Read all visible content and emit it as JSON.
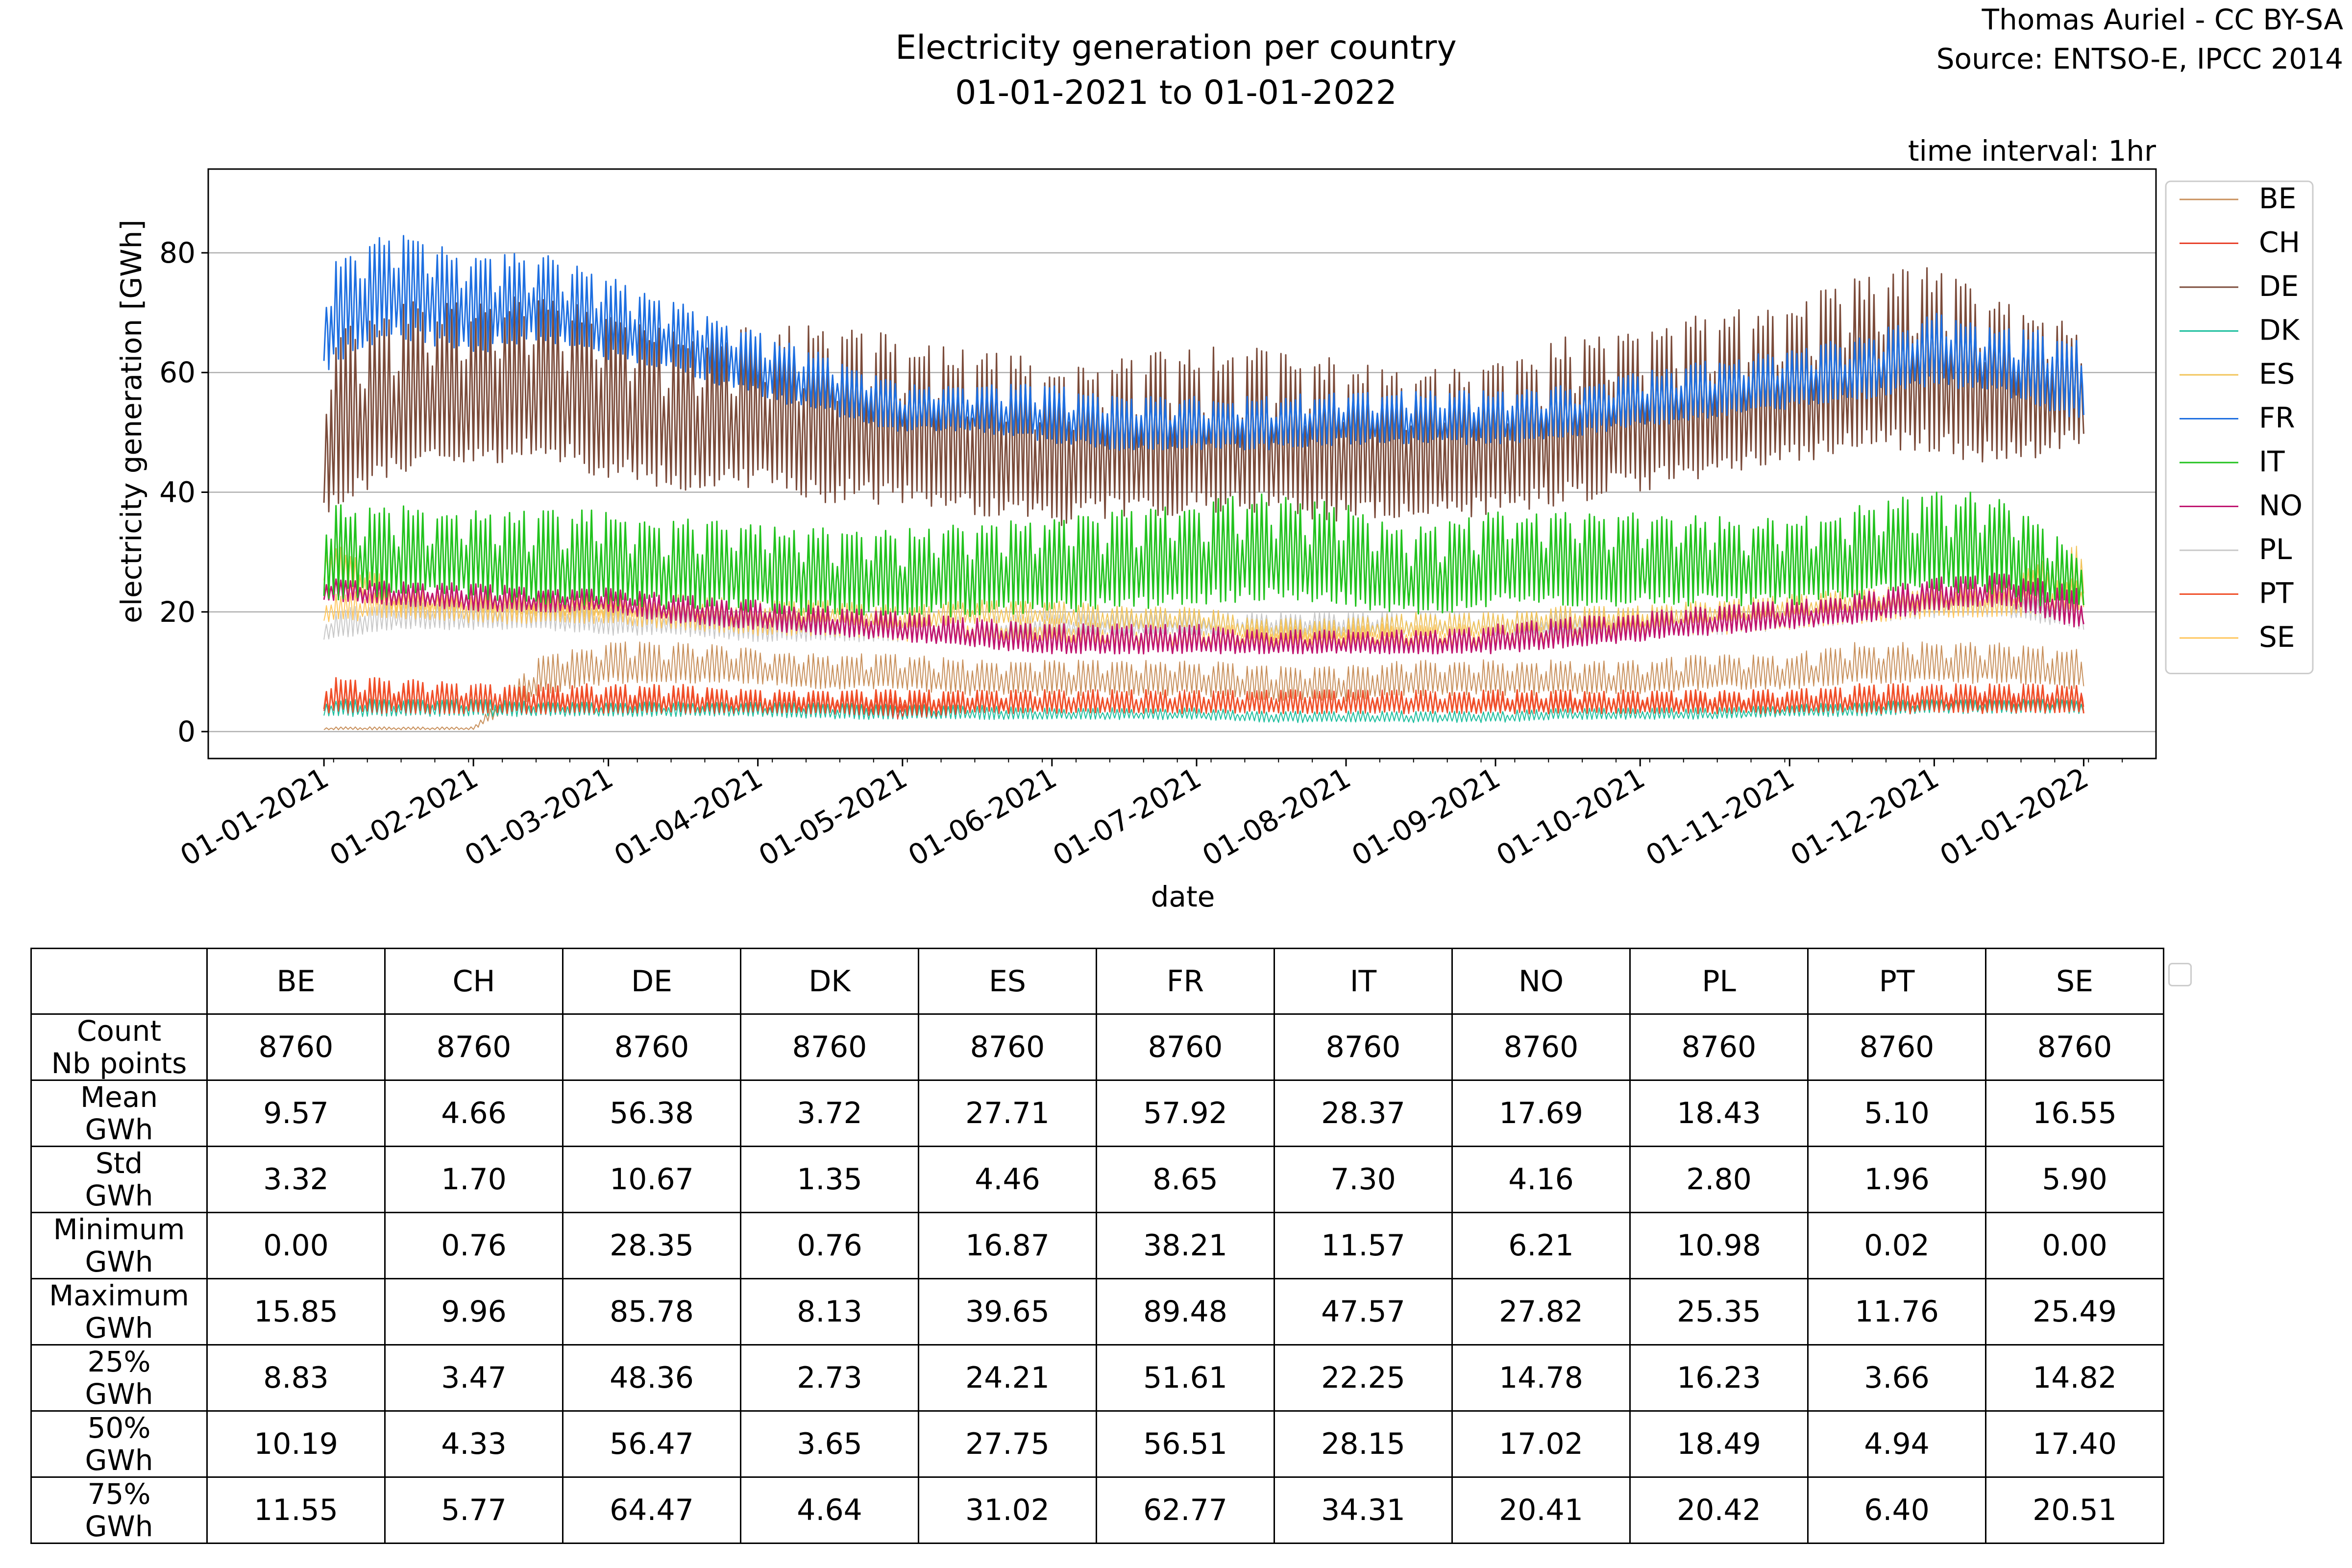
{
  "header": {
    "title_line1": "Electricity generation per country",
    "title_line2": "01-01-2021 to 01-01-2022",
    "credit_line1": "Thomas Auriel - CC BY-SA",
    "credit_line2": "Source: ENTSO-E, IPCC 2014",
    "interval": "time interval: 1hr"
  },
  "chart_data": {
    "type": "line",
    "title": "Electricity generation per country\n01-01-2021 to 01-01-2022",
    "xlabel": "date",
    "ylabel": "electricity generation [GWh]",
    "ylim": [
      -4.5,
      94
    ],
    "xlim": [
      "2020-12-08",
      "2022-01-16"
    ],
    "grid": "horizontal",
    "legend_position": "right",
    "yticks": [
      0,
      20,
      40,
      60,
      80
    ],
    "xticks": [
      "01-01-2021",
      "01-02-2021",
      "01-03-2021",
      "01-04-2021",
      "01-05-2021",
      "01-06-2021",
      "01-07-2021",
      "01-08-2021",
      "01-09-2021",
      "01-10-2021",
      "01-11-2021",
      "01-12-2021",
      "01-01-2022"
    ],
    "series_profile_note_x": [
      "2021-01-01",
      "2021-01-15",
      "2021-02-01",
      "2021-02-15",
      "2021-03-01",
      "2021-03-15",
      "2021-04-01",
      "2021-04-15",
      "2021-05-01",
      "2021-05-15",
      "2021-06-01",
      "2021-06-15",
      "2021-07-01",
      "2021-07-15",
      "2021-08-01",
      "2021-08-15",
      "2021-09-01",
      "2021-09-15",
      "2021-10-01",
      "2021-10-15",
      "2021-11-01",
      "2021-11-15",
      "2021-12-01",
      "2021-12-15",
      "2021-12-31"
    ],
    "series": [
      {
        "name": "BE",
        "color": "#c8905c",
        "width": 2,
        "low": [
          0.3,
          0.3,
          0.3,
          6,
          8,
          8,
          8,
          7,
          7,
          6,
          6,
          6,
          6,
          5,
          5,
          6,
          6,
          6,
          6,
          7,
          7,
          8,
          8,
          8,
          7
        ],
        "high": [
          0.8,
          0.8,
          0.8,
          13,
          15,
          15,
          14,
          13,
          13,
          12,
          12,
          12,
          12,
          11,
          11,
          12,
          12,
          12,
          12,
          13,
          13,
          15,
          15,
          15,
          14
        ]
      },
      {
        "name": "CH",
        "color": "#e8402a",
        "width": 2,
        "low": [
          3,
          3,
          3,
          3,
          3,
          3,
          3,
          3,
          2,
          3,
          3,
          3,
          3,
          3,
          3,
          3,
          3,
          3,
          3,
          3,
          3,
          4,
          4,
          4,
          4
        ],
        "high": [
          8,
          8,
          8,
          7,
          7,
          7,
          6,
          6,
          6,
          6,
          7,
          7,
          7,
          7,
          7,
          7,
          6,
          6,
          6,
          6,
          6,
          7,
          8,
          8,
          8
        ]
      },
      {
        "name": "DE",
        "color": "#7b4b3a",
        "width": 3,
        "low": [
          36,
          42,
          44,
          46,
          42,
          40,
          40,
          38,
          38,
          36,
          34,
          36,
          36,
          36,
          35,
          35,
          36,
          38,
          40,
          42,
          44,
          46,
          46,
          44,
          48
        ],
        "high": [
          66,
          72,
          72,
          73,
          70,
          68,
          68,
          68,
          67,
          64,
          62,
          63,
          64,
          65,
          62,
          60,
          62,
          66,
          68,
          70,
          72,
          76,
          78,
          72,
          68
        ]
      },
      {
        "name": "DK",
        "color": "#1fbf9f",
        "width": 2,
        "low": [
          2.5,
          2.5,
          2.5,
          2.5,
          2.5,
          2.5,
          2.5,
          2,
          2,
          2,
          2,
          2,
          2,
          1.5,
          1.5,
          1.5,
          1.5,
          2,
          2,
          2,
          2.5,
          2.5,
          3,
          3,
          3
        ],
        "high": [
          5.5,
          5.5,
          5.5,
          5,
          5,
          5,
          5,
          5,
          4.5,
          4.5,
          4,
          4,
          4,
          3.5,
          3.5,
          3.5,
          3.5,
          4,
          4,
          4,
          4.5,
          5,
          5.5,
          5.5,
          5.5
        ]
      },
      {
        "name": "ES",
        "color": "#f2c45a",
        "width": 2,
        "low": [
          24,
          20,
          20,
          19,
          19,
          19,
          18,
          18,
          17,
          18,
          18,
          17,
          17,
          15,
          15,
          16,
          16,
          17,
          17,
          18,
          19,
          20,
          21,
          21,
          22
        ],
        "high": [
          33,
          25,
          24,
          23,
          23,
          23,
          22,
          22,
          21,
          22,
          22,
          21,
          21,
          19,
          19,
          20,
          20,
          21,
          21,
          22,
          23,
          24,
          25,
          25,
          32
        ]
      },
      {
        "name": "FR",
        "color": "#1e6fe0",
        "width": 3,
        "low": [
          60,
          66,
          63,
          65,
          62,
          60,
          56,
          53,
          50,
          50,
          48,
          47,
          47,
          47,
          48,
          48,
          48,
          49,
          51,
          52,
          54,
          55,
          58,
          56,
          52
        ],
        "high": [
          78,
          84,
          80,
          80,
          76,
          72,
          67,
          63,
          58,
          58,
          58,
          56,
          56,
          56,
          57,
          57,
          57,
          58,
          60,
          62,
          64,
          66,
          70,
          68,
          66
        ]
      },
      {
        "name": "IT",
        "color": "#22c21e",
        "width": 3,
        "low": [
          22,
          22,
          22,
          21,
          21,
          20,
          20,
          19,
          19,
          19,
          20,
          20,
          21,
          22,
          21,
          19,
          21,
          21,
          21,
          21,
          21,
          22,
          23,
          22,
          20
        ],
        "high": [
          38,
          38,
          37,
          37,
          37,
          36,
          35,
          34,
          34,
          35,
          36,
          37,
          39,
          40,
          38,
          34,
          37,
          37,
          37,
          36,
          36,
          38,
          40,
          40,
          30
        ]
      },
      {
        "name": "NO",
        "color": "#c01670",
        "width": 3,
        "low": [
          22,
          21,
          20,
          20,
          20,
          18,
          17,
          16,
          15,
          14,
          13,
          13,
          13,
          13,
          13,
          13,
          13,
          14,
          15,
          16,
          17,
          18,
          20,
          21,
          17
        ],
        "high": [
          26,
          25,
          25,
          24,
          24,
          23,
          22,
          21,
          20,
          19,
          18,
          18,
          18,
          17,
          17,
          17,
          18,
          19,
          20,
          21,
          22,
          23,
          26,
          27,
          24
        ]
      },
      {
        "name": "PL",
        "color": "#c8c8c8",
        "width": 2,
        "low": [
          15,
          17,
          17,
          17,
          16,
          16,
          15,
          15,
          15,
          15,
          16,
          16,
          16,
          16,
          16,
          16,
          16,
          16,
          16,
          16,
          17,
          18,
          19,
          19,
          17
        ],
        "high": [
          20,
          22,
          22,
          22,
          21,
          21,
          20,
          20,
          20,
          19,
          20,
          20,
          20,
          20,
          20,
          20,
          20,
          20,
          21,
          21,
          21,
          22,
          23,
          23,
          22
        ]
      },
      {
        "name": "PT",
        "color": "#f0502a",
        "width": 3,
        "low": [
          3,
          3,
          3,
          3,
          3,
          3,
          3,
          3,
          3,
          3,
          3,
          3,
          3,
          3,
          3,
          3,
          3,
          3,
          3,
          3,
          3,
          3,
          3,
          3,
          3
        ],
        "high": [
          9,
          9,
          8,
          8,
          8,
          8,
          7,
          7,
          7,
          7,
          7,
          7,
          7,
          7,
          7,
          7,
          7,
          7,
          7,
          7,
          7,
          8,
          8,
          8,
          8
        ]
      },
      {
        "name": "SE",
        "color": "#ffc65c",
        "width": 2,
        "low": [
          18,
          19,
          18,
          18,
          18,
          17,
          16,
          16,
          15,
          15,
          15,
          14,
          14,
          14,
          14,
          14,
          14,
          15,
          16,
          16,
          17,
          18,
          19,
          19,
          20
        ],
        "high": [
          23,
          24,
          23,
          23,
          22,
          22,
          21,
          20,
          19,
          19,
          19,
          18,
          18,
          18,
          18,
          18,
          18,
          19,
          20,
          20,
          21,
          22,
          24,
          24,
          26
        ]
      }
    ]
  },
  "stats_table": {
    "columns": [
      "BE",
      "CH",
      "DE",
      "DK",
      "ES",
      "FR",
      "IT",
      "NO",
      "PL",
      "PT",
      "SE"
    ],
    "rows": [
      {
        "label1": "Count",
        "label2": "Nb points",
        "values": [
          "8760",
          "8760",
          "8760",
          "8760",
          "8760",
          "8760",
          "8760",
          "8760",
          "8760",
          "8760",
          "8760"
        ]
      },
      {
        "label1": "Mean",
        "label2": "GWh",
        "values": [
          "9.57",
          "4.66",
          "56.38",
          "3.72",
          "27.71",
          "57.92",
          "28.37",
          "17.69",
          "18.43",
          "5.10",
          "16.55"
        ]
      },
      {
        "label1": "Std",
        "label2": "GWh",
        "values": [
          "3.32",
          "1.70",
          "10.67",
          "1.35",
          "4.46",
          "8.65",
          "7.30",
          "4.16",
          "2.80",
          "1.96",
          "5.90"
        ]
      },
      {
        "label1": "Minimum",
        "label2": "GWh",
        "values": [
          "0.00",
          "0.76",
          "28.35",
          "0.76",
          "16.87",
          "38.21",
          "11.57",
          "6.21",
          "10.98",
          "0.02",
          "0.00"
        ]
      },
      {
        "label1": "Maximum",
        "label2": "GWh",
        "values": [
          "15.85",
          "9.96",
          "85.78",
          "8.13",
          "39.65",
          "89.48",
          "47.57",
          "27.82",
          "25.35",
          "11.76",
          "25.49"
        ]
      },
      {
        "label1": "25%",
        "label2": "GWh",
        "values": [
          "8.83",
          "3.47",
          "48.36",
          "2.73",
          "24.21",
          "51.61",
          "22.25",
          "14.78",
          "16.23",
          "3.66",
          "14.82"
        ]
      },
      {
        "label1": "50%",
        "label2": "GWh",
        "values": [
          "10.19",
          "4.33",
          "56.47",
          "3.65",
          "27.75",
          "56.51",
          "28.15",
          "17.02",
          "18.49",
          "4.94",
          "17.40"
        ]
      },
      {
        "label1": "75%",
        "label2": "GWh",
        "values": [
          "11.55",
          "5.77",
          "64.47",
          "4.64",
          "31.02",
          "62.77",
          "34.31",
          "20.41",
          "20.42",
          "6.40",
          "20.51"
        ]
      }
    ]
  }
}
